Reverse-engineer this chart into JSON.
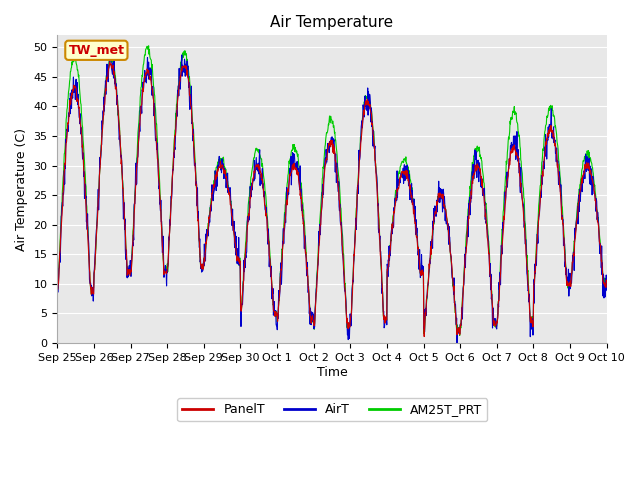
{
  "title": "Air Temperature",
  "ylabel": "Air Temperature (C)",
  "xlabel": "Time",
  "annotation": "TW_met",
  "ylim": [
    0,
    52
  ],
  "yticks": [
    0,
    5,
    10,
    15,
    20,
    25,
    30,
    35,
    40,
    45,
    50
  ],
  "xtick_labels": [
    "Sep 25",
    "Sep 26",
    "Sep 27",
    "Sep 28",
    "Sep 29",
    "Sep 30",
    "Oct 1",
    "Oct 2",
    "Oct 3",
    "Oct 4",
    "Oct 5",
    "Oct 6",
    "Oct 7",
    "Oct 8",
    "Oct 9",
    "Oct 10"
  ],
  "legend_labels": [
    "PanelT",
    "AirT",
    "AM25T_PRT"
  ],
  "line_colors_panel": "#cc0000",
  "line_colors_air": "#0000cc",
  "line_colors_am25": "#00cc00",
  "plot_bg_color": "#e8e8e8",
  "grid_color": "#ffffff",
  "annotation_bg": "#ffffcc",
  "annotation_border": "#cc8800",
  "annotation_text_color": "#cc0000",
  "title_fontsize": 11,
  "axis_label_fontsize": 9,
  "tick_fontsize": 8,
  "legend_fontsize": 9,
  "linewidth": 0.8,
  "n_days": 15,
  "pts_per_day": 96
}
